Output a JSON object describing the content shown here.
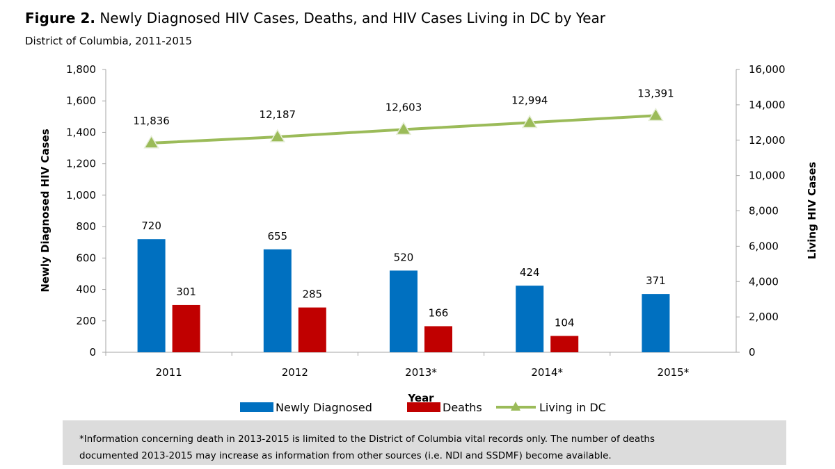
{
  "figure": {
    "label": "Figure 2.",
    "title": "Newly Diagnosed HIV Cases, Deaths, and HIV Cases Living in DC by Year",
    "subtitle": "District of Columbia, 2011-2015"
  },
  "chart_data": {
    "type": "bar",
    "categories": [
      "2011",
      "2012",
      "2013*",
      "2014*",
      "2015*"
    ],
    "series": [
      {
        "name": "Newly Diagnosed",
        "type": "bar",
        "axis": "left",
        "color": "#0070C0",
        "values": [
          720,
          655,
          520,
          424,
          371
        ]
      },
      {
        "name": "Deaths",
        "type": "bar",
        "axis": "left",
        "color": "#C00000",
        "values": [
          301,
          285,
          166,
          104,
          null
        ]
      },
      {
        "name": "Living in DC",
        "type": "line",
        "axis": "right",
        "color": "#9BBB59",
        "marker": "triangle",
        "values": [
          11836,
          12187,
          12603,
          12994,
          13391
        ]
      }
    ],
    "data_labels": {
      "Newly Diagnosed": [
        "720",
        "655",
        "520",
        "424",
        "371"
      ],
      "Deaths": [
        "301",
        "285",
        "166",
        "104",
        ""
      ],
      "Living in DC": [
        "11,836",
        "12,187",
        "12,603",
        "12,994",
        "13,391"
      ]
    },
    "xlabel": "Year",
    "ylabel": "Newly Diagnosed HIV Cases",
    "y2label": "Living HIV Cases",
    "ylim": [
      0,
      1800
    ],
    "y2lim": [
      0,
      16000
    ],
    "yticks": [
      "0",
      "200",
      "400",
      "600",
      "800",
      "1,000",
      "1,200",
      "1,400",
      "1,600",
      "1,800"
    ],
    "y2ticks": [
      "0",
      "2,000",
      "4,000",
      "6,000",
      "8,000",
      "10,000",
      "12,000",
      "14,000",
      "16,000"
    ],
    "grid": false,
    "legend": "bottom"
  },
  "note": {
    "line1": "*Information concerning death in 2013-2015 is limited to the District of Columbia vital records only. The number of deaths",
    "line2": "documented 2013-2015 may increase as information from other sources (i.e. NDI and SSDMF) become available."
  }
}
